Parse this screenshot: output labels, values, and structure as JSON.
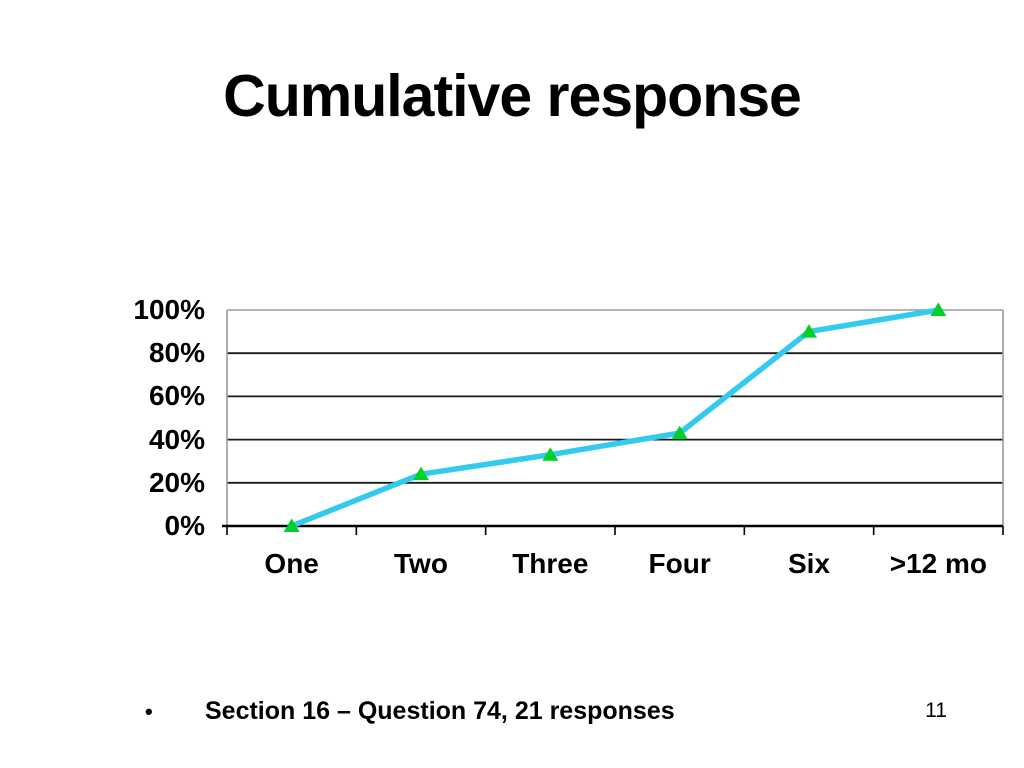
{
  "slide": {
    "title": "Cumulative response",
    "bullet_glyph": "•",
    "footnote": "Section 16 – Question 74, 21 responses",
    "page_number": "11"
  },
  "chart_data": {
    "type": "line",
    "title": "",
    "categories": [
      "One",
      "Two",
      "Three",
      "Four",
      "Six",
      ">12 mo"
    ],
    "series": [
      {
        "name": "Cumulative response",
        "values": [
          0,
          24,
          33,
          43,
          90,
          100
        ]
      }
    ],
    "xlabel": "",
    "ylabel": "",
    "ylim": [
      0,
      100
    ],
    "y_tick_values": [
      0,
      20,
      40,
      60,
      80,
      100
    ],
    "y_tick_labels": [
      "0%",
      "20%",
      "40%",
      "60%",
      "80%",
      "100%"
    ],
    "grid": "horizontal",
    "legend_position": "none",
    "colors": {
      "line": "#33CAEE",
      "marker": "#00D02A",
      "gridline": "#1a1a1a",
      "plot_border": "#9a9a9a",
      "axis": "#000000",
      "background": "#ffffff",
      "text": "#000000"
    },
    "marker_shape": "triangle"
  }
}
